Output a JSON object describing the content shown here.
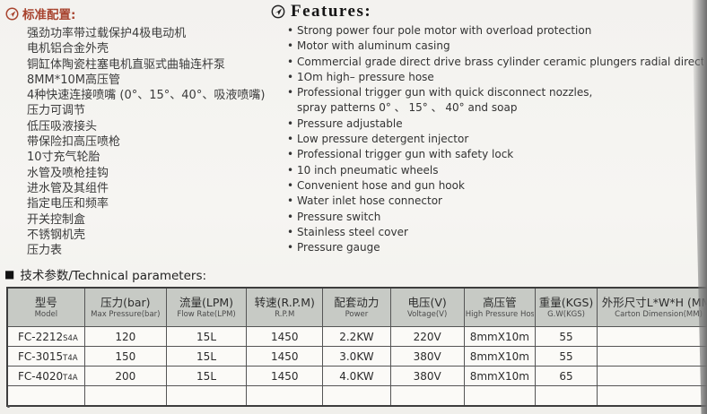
{
  "standard_config": {
    "heading": "标准配置:",
    "items": [
      "强劲功率带过载保护4极电动机",
      "电机铝合金外壳",
      "铜缸体陶瓷柱塞电机直驱式曲轴连杆泵",
      "8MM*10M高压管",
      "4种快速连接喷嘴 (0°、15°、40°、吸液喷嘴)",
      "压力可调节",
      "低压吸液接头",
      "带保险扣高压喷枪",
      "10寸充气轮胎",
      "水管及喷枪挂钩",
      "进水管及其组件",
      "指定电压和频率",
      "开关控制盒",
      "不锈钢机壳",
      "压力表"
    ]
  },
  "features": {
    "heading": "Features:",
    "lines": [
      {
        "bullet": true,
        "text": "Strong power four pole motor with overload protection"
      },
      {
        "bullet": true,
        "text": "Motor with aluminum casing"
      },
      {
        "bullet": true,
        "text": "Commercial grade direct drive brass cylinder ceramic plungers radial direction pu"
      },
      {
        "bullet": true,
        "text": "1Om high– pressure hose"
      },
      {
        "bullet": true,
        "text": "Professional trigger gun with quick disconnect nozzles,"
      },
      {
        "bullet": false,
        "text": "spray patterns 0° 、 15° 、 40° and soap"
      },
      {
        "bullet": true,
        "text": "Pressure adjustable"
      },
      {
        "bullet": true,
        "text": "Low pressure detergent injector"
      },
      {
        "bullet": true,
        "text": "Professional trigger gun with safety lock"
      },
      {
        "bullet": true,
        "text": "10 inch pneumatic wheels"
      },
      {
        "bullet": true,
        "text": "Convenient hose and gun hook"
      },
      {
        "bullet": true,
        "text": "Water inlet hose connector"
      },
      {
        "bullet": true,
        "text": "Pressure switch"
      },
      {
        "bullet": true,
        "text": "Stainless steel cover"
      },
      {
        "bullet": true,
        "text": "Pressure gauge"
      }
    ]
  },
  "tech_params": {
    "marker": "■",
    "heading_text": "技术参数/Technical parameters:",
    "table": {
      "columns": [
        {
          "zh": "型号",
          "en": "Model"
        },
        {
          "zh": "压力(bar)",
          "en": "Max Pressure(bar)"
        },
        {
          "zh": "流量(LPM)",
          "en": "Flow Rate(LPM)"
        },
        {
          "zh": "转速(R.P.M)",
          "en": "R.P.M"
        },
        {
          "zh": "配套动力",
          "en": "Power"
        },
        {
          "zh": "电压(V)",
          "en": "Voltage(V)"
        },
        {
          "zh": "高压管",
          "en": "High Pressure Hose"
        },
        {
          "zh": "重量(KGS)",
          "en": "G.W(KGS)"
        },
        {
          "zh": "外形尺寸L*W*H (MM)",
          "en": "Carton Dimension(MM)"
        }
      ],
      "rows": [
        {
          "model": "FC-2212",
          "suffix": "S4A",
          "values": [
            "120",
            "15L",
            "1450",
            "2.2KW",
            "220V",
            "8mmX10m",
            "55",
            ""
          ]
        },
        {
          "model": "FC-3015",
          "suffix": "T4A",
          "values": [
            "150",
            "15L",
            "1450",
            "3.0KW",
            "380V",
            "8mmX10m",
            "55",
            ""
          ]
        },
        {
          "model": "FC-4020",
          "suffix": "T4A",
          "values": [
            "200",
            "15L",
            "1450",
            "4.0KW",
            "380V",
            "8mmX10m",
            "65",
            ""
          ]
        },
        {
          "model": "",
          "suffix": "",
          "values": [
            "",
            "",
            "",
            "",
            "",
            "",
            "",
            ""
          ]
        }
      ]
    }
  },
  "colors": {
    "accent_red": "#a8442f",
    "heading_black": "#161616",
    "table_header_bg": "#c7cac5",
    "page_bg": "#f4f3f0"
  }
}
